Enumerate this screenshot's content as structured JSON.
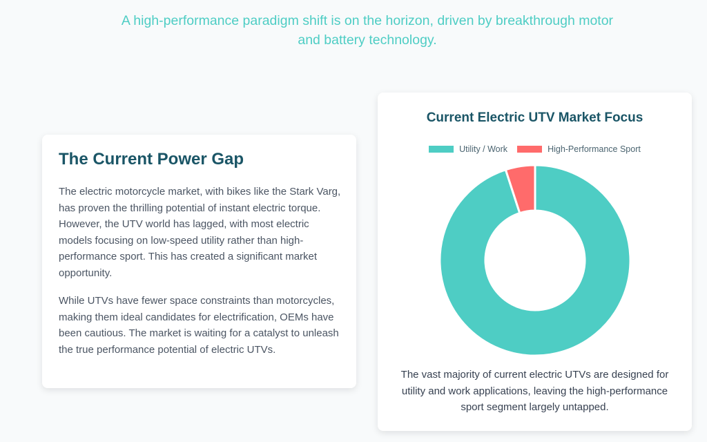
{
  "header": {
    "subtitle": "A high-performance paradigm shift is on the horizon, driven by breakthrough motor and battery technology."
  },
  "power_gap": {
    "title": "The Current Power Gap",
    "paragraphs": [
      "The electric motorcycle market, with bikes like the Stark Varg, has proven the thrilling potential of instant electric torque. However, the UTV world has lagged, with most electric models focusing on low-speed utility rather than high-performance sport. This has created a significant market opportunity.",
      "While UTVs have fewer space constraints than motorcycles, making them ideal candidates for electrification, OEMs have been cautious. The market is waiting for a catalyst to unleash the true performance potential of electric UTVs."
    ]
  },
  "chart_data": {
    "type": "pie",
    "variant": "doughnut",
    "title": "Current Electric UTV Market Focus",
    "categories": [
      "Utility / Work",
      "High-Performance Sport"
    ],
    "values": [
      95,
      5
    ],
    "colors": [
      "#4ecdc4",
      "#ff6b6b"
    ],
    "legend": "top",
    "caption": "The vast majority of current electric UTVs are designed for utility and work applications, leaving the high-performance sport segment largely untapped."
  }
}
